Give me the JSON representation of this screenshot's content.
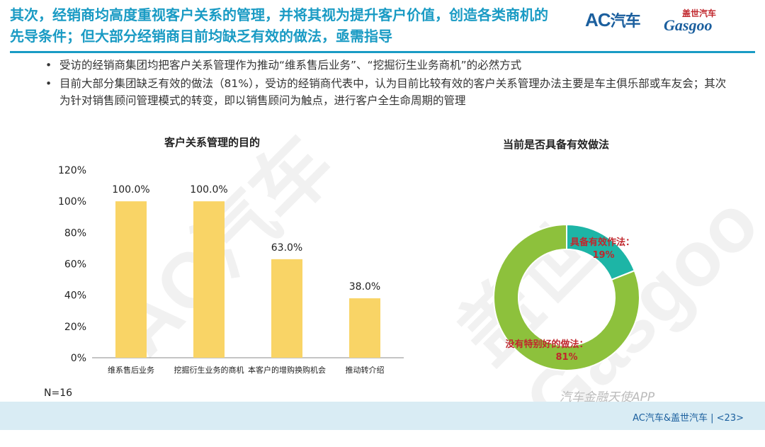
{
  "header": {
    "title": "其次，经销商均高度重视客户关系的管理，并将其视为提升客户价值，创造各类商机的先导条件；但大部分经销商目前均缺乏有效的做法，亟需指导",
    "logo_ac": "AC",
    "logo_ac_cn": "汽车",
    "logo_gasgoo_cn": "盖世汽车",
    "logo_gasgoo_en": "Gasgoo"
  },
  "bullets": [
    "受访的经销商集团均把客户关系管理作为推动“维系售后业务”、“挖掘衍生业务商机”的必然方式",
    "目前大部分集团缺乏有效的做法（81%），受访的经销商代表中，认为目前比较有效的客户关系管理办法主要是车主俱乐部或车友会；其次为针对销售顾问管理模式的转变，即以销售顾问为触点，进行客户全生命周期的管理"
  ],
  "bullet_symbol": "•",
  "chart_data": [
    {
      "type": "bar",
      "title": "客户关系管理的目的",
      "categories": [
        "维系售后业务",
        "挖掘衍生业务的商机",
        "本客户的增购换购机会",
        "推动转介绍"
      ],
      "values": [
        100.0,
        100.0,
        63.0,
        38.0
      ],
      "data_labels": [
        "100.0%",
        "100.0%",
        "63.0%",
        "38.0%"
      ],
      "ylim": [
        0,
        120
      ],
      "yticks": [
        "0%",
        "20%",
        "40%",
        "60%",
        "80%",
        "100%",
        "120%"
      ],
      "grid": false,
      "color": "#f9d466"
    },
    {
      "type": "pie",
      "title": "当前是否具备有效做法",
      "donut": true,
      "slices": [
        {
          "label": "具备有效作法：",
          "value": 19,
          "value_label": "19%",
          "color": "#1db5a6"
        },
        {
          "label": "没有特别好的做法：",
          "value": 81,
          "value_label": "81%",
          "color": "#8dc13c"
        }
      ]
    }
  ],
  "n_label": "N=16",
  "footer": {
    "text": "AC汽车&盖世汽车 | <23>",
    "wechat": "汽车金融天使APP"
  }
}
